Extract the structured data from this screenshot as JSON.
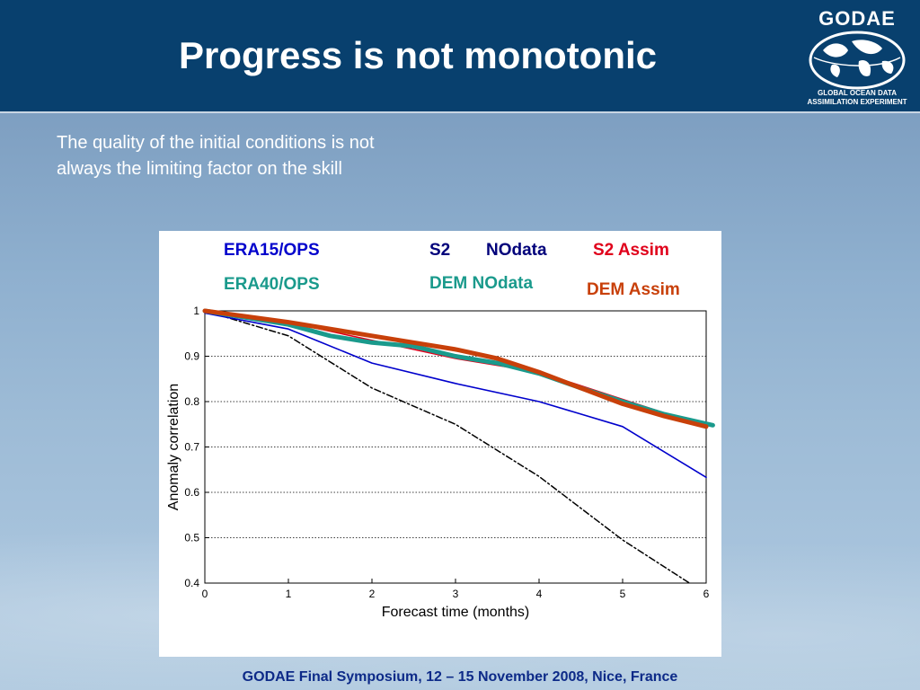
{
  "slide": {
    "title": "Progress is not monotonic",
    "subtitle_lines": [
      "The quality of the initial conditions is not",
      "always the limiting factor on the skill"
    ],
    "footer": "GODAE Final Symposium, 12 – 15 November 2008, Nice, France"
  },
  "logo": {
    "wordmark": "GODAE",
    "line1": "GLOBAL OCEAN DATA",
    "line2": "ASSIMILATION EXPERIMENT"
  },
  "legend": {
    "era15": "ERA15/OPS",
    "era40": "ERA40/OPS",
    "s2": "S2",
    "s2_nodata": "NOdata",
    "s2_assim": "S2 Assim",
    "dem_nodata": "DEM NOdata",
    "dem_assim": "DEM Assim"
  },
  "colors": {
    "header": "#08406e",
    "era15": "#0000cc",
    "era40": "#1a9a8c",
    "s2_nodata": "#00007a",
    "s2_assim": "#e0001b",
    "dem_assim": "#c8400a",
    "nodata_line": "#000000"
  },
  "chart_data": {
    "type": "line",
    "xlabel": "Forecast time (months)",
    "ylabel": "Anomaly correlation",
    "xlim": [
      0,
      6
    ],
    "ylim": [
      0.4,
      1
    ],
    "x_ticks": [
      "0",
      "1",
      "2",
      "3",
      "4",
      "5",
      "6"
    ],
    "y_ticks": [
      "0.4",
      "0.5",
      "0.6",
      "0.7",
      "0.8",
      "0.9",
      "1"
    ],
    "grid": "horizontal dotted",
    "series": [
      {
        "key": "s2_nodata",
        "style": "dashdot",
        "color": "#000000",
        "width": 1.5,
        "x": [
          0,
          1,
          2,
          3,
          4,
          5,
          5.8
        ],
        "y": [
          1.0,
          0.945,
          0.83,
          0.75,
          0.635,
          0.495,
          0.4
        ]
      },
      {
        "key": "era15",
        "style": "solid",
        "color": "#0000cc",
        "width": 1.6,
        "x": [
          0,
          1,
          2,
          3,
          4,
          5,
          6
        ],
        "y": [
          0.995,
          0.96,
          0.885,
          0.84,
          0.8,
          0.745,
          0.633
        ]
      },
      {
        "key": "s2_assim",
        "style": "solid",
        "color": "#e0001b",
        "width": 1.6,
        "x": [
          0,
          1,
          2,
          3,
          4,
          5,
          6
        ],
        "y": [
          1.0,
          0.975,
          0.935,
          0.895,
          0.865,
          0.805,
          0.745
        ]
      },
      {
        "key": "era40",
        "style": "solid",
        "color": "#1a9a8c",
        "width": 5,
        "x": [
          0,
          1,
          1.5,
          2,
          2.5,
          3,
          3.5,
          4,
          4.5,
          5,
          5.5,
          6.08
        ],
        "y": [
          1.0,
          0.97,
          0.945,
          0.93,
          0.922,
          0.9,
          0.885,
          0.862,
          0.83,
          0.8,
          0.772,
          0.748
        ]
      },
      {
        "key": "dem_assim",
        "style": "solid",
        "color": "#c8400a",
        "width": 5,
        "x": [
          0,
          1,
          2,
          3,
          3.5,
          4,
          4.5,
          5,
          5.5,
          6
        ],
        "y": [
          1.0,
          0.975,
          0.945,
          0.915,
          0.895,
          0.865,
          0.83,
          0.795,
          0.768,
          0.745
        ]
      }
    ]
  }
}
